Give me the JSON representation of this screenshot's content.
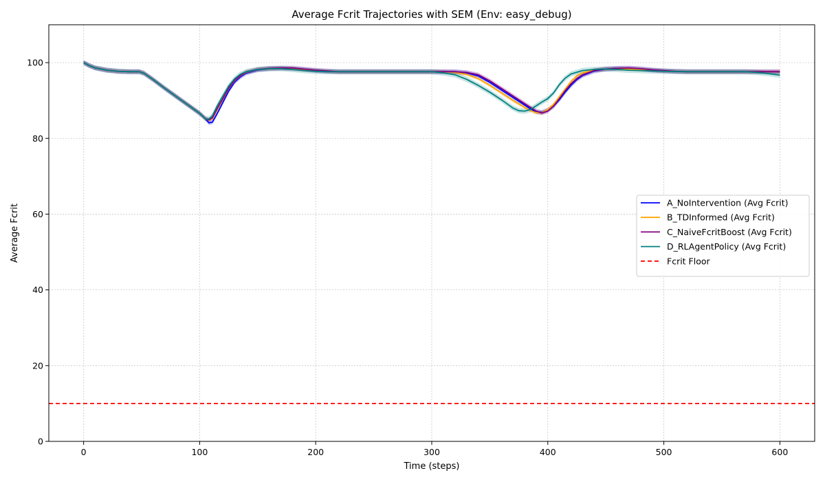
{
  "chart_data": {
    "type": "line",
    "title": "Average Fcrit Trajectories with SEM (Env: easy_debug)",
    "xlabel": "Time (steps)",
    "ylabel": "Average Fcrit",
    "xlim": [
      -30,
      630
    ],
    "ylim": [
      0,
      110
    ],
    "xticks": [
      0,
      100,
      200,
      300,
      400,
      500,
      600
    ],
    "yticks": [
      0,
      20,
      40,
      60,
      80,
      100
    ],
    "grid": true,
    "legend_position": "center-right",
    "series": [
      {
        "name": "A_NoIntervention (Avg Fcrit)",
        "color": "#0000ff",
        "style": "solid",
        "sem": 0.6,
        "points": [
          [
            0,
            100
          ],
          [
            5,
            99.2
          ],
          [
            10,
            98.6
          ],
          [
            20,
            98
          ],
          [
            30,
            97.7
          ],
          [
            40,
            97.6
          ],
          [
            48,
            97.6
          ],
          [
            52,
            97.2
          ],
          [
            60,
            95.5
          ],
          [
            70,
            93.2
          ],
          [
            80,
            91
          ],
          [
            90,
            88.8
          ],
          [
            100,
            86.6
          ],
          [
            105,
            85.2
          ],
          [
            108,
            84.1
          ],
          [
            111,
            84.3
          ],
          [
            115,
            86.5
          ],
          [
            120,
            89.5
          ],
          [
            125,
            92.5
          ],
          [
            130,
            94.8
          ],
          [
            135,
            96.2
          ],
          [
            140,
            97.2
          ],
          [
            150,
            98.1
          ],
          [
            160,
            98.4
          ],
          [
            170,
            98.5
          ],
          [
            180,
            98.4
          ],
          [
            190,
            98.2
          ],
          [
            200,
            97.9
          ],
          [
            210,
            97.7
          ],
          [
            220,
            97.6
          ],
          [
            300,
            97.6
          ],
          [
            310,
            97.6
          ],
          [
            320,
            97.6
          ],
          [
            330,
            97.3
          ],
          [
            340,
            96.5
          ],
          [
            350,
            94.8
          ],
          [
            360,
            92.8
          ],
          [
            370,
            90.8
          ],
          [
            380,
            88.8
          ],
          [
            385,
            87.8
          ],
          [
            390,
            87
          ],
          [
            395,
            86.9
          ],
          [
            400,
            87.5
          ],
          [
            405,
            88.5
          ],
          [
            410,
            90.2
          ],
          [
            415,
            92.2
          ],
          [
            420,
            94
          ],
          [
            425,
            95.5
          ],
          [
            430,
            96.6
          ],
          [
            440,
            97.8
          ],
          [
            450,
            98.3
          ],
          [
            460,
            98.5
          ],
          [
            470,
            98.5
          ],
          [
            480,
            98.3
          ],
          [
            490,
            98
          ],
          [
            500,
            97.8
          ],
          [
            510,
            97.7
          ],
          [
            520,
            97.6
          ],
          [
            600,
            97.6
          ]
        ]
      },
      {
        "name": "B_TDInformed (Avg Fcrit)",
        "color": "#ffa500",
        "style": "solid",
        "sem": 0.5,
        "points": [
          [
            0,
            100
          ],
          [
            5,
            99.2
          ],
          [
            10,
            98.6
          ],
          [
            20,
            98
          ],
          [
            30,
            97.7
          ],
          [
            40,
            97.6
          ],
          [
            48,
            97.6
          ],
          [
            52,
            97.2
          ],
          [
            60,
            95.5
          ],
          [
            70,
            93.2
          ],
          [
            80,
            91
          ],
          [
            90,
            88.8
          ],
          [
            100,
            86.6
          ],
          [
            105,
            85.2
          ],
          [
            108,
            84.8
          ],
          [
            111,
            85.2
          ],
          [
            115,
            87.5
          ],
          [
            120,
            90.3
          ],
          [
            125,
            93.2
          ],
          [
            130,
            95.2
          ],
          [
            135,
            96.5
          ],
          [
            140,
            97.4
          ],
          [
            150,
            98.2
          ],
          [
            160,
            98.4
          ],
          [
            170,
            98.5
          ],
          [
            180,
            98.4
          ],
          [
            190,
            98.1
          ],
          [
            200,
            97.9
          ],
          [
            210,
            97.7
          ],
          [
            220,
            97.6
          ],
          [
            300,
            97.6
          ],
          [
            310,
            97.6
          ],
          [
            320,
            97.4
          ],
          [
            330,
            96.9
          ],
          [
            340,
            95.8
          ],
          [
            350,
            94
          ],
          [
            360,
            92
          ],
          [
            370,
            90
          ],
          [
            380,
            88.2
          ],
          [
            385,
            87.3
          ],
          [
            390,
            86.8
          ],
          [
            395,
            86.8
          ],
          [
            400,
            87.6
          ],
          [
            405,
            89
          ],
          [
            410,
            91
          ],
          [
            415,
            93
          ],
          [
            420,
            95
          ],
          [
            425,
            96.5
          ],
          [
            430,
            97.3
          ],
          [
            440,
            98
          ],
          [
            450,
            98.3
          ],
          [
            460,
            98.4
          ],
          [
            470,
            98.3
          ],
          [
            480,
            98.2
          ],
          [
            490,
            98
          ],
          [
            500,
            97.8
          ],
          [
            510,
            97.7
          ],
          [
            520,
            97.6
          ],
          [
            600,
            97.6
          ]
        ]
      },
      {
        "name": "C_NaiveFcritBoost (Avg Fcrit)",
        "color": "#800080",
        "style": "solid",
        "sem": 0.6,
        "points": [
          [
            0,
            100
          ],
          [
            5,
            99.2
          ],
          [
            10,
            98.6
          ],
          [
            20,
            98
          ],
          [
            30,
            97.7
          ],
          [
            40,
            97.6
          ],
          [
            48,
            97.6
          ],
          [
            52,
            97.2
          ],
          [
            60,
            95.5
          ],
          [
            70,
            93.2
          ],
          [
            80,
            91
          ],
          [
            90,
            88.8
          ],
          [
            100,
            86.6
          ],
          [
            105,
            85.2
          ],
          [
            108,
            84.9
          ],
          [
            111,
            85.4
          ],
          [
            115,
            87.8
          ],
          [
            120,
            90.5
          ],
          [
            125,
            93.3
          ],
          [
            130,
            95.3
          ],
          [
            135,
            96.6
          ],
          [
            140,
            97.5
          ],
          [
            150,
            98.2
          ],
          [
            160,
            98.5
          ],
          [
            170,
            98.6
          ],
          [
            180,
            98.6
          ],
          [
            190,
            98.3
          ],
          [
            200,
            98
          ],
          [
            210,
            97.8
          ],
          [
            220,
            97.6
          ],
          [
            300,
            97.6
          ],
          [
            310,
            97.6
          ],
          [
            320,
            97.6
          ],
          [
            330,
            97.4
          ],
          [
            340,
            96.8
          ],
          [
            350,
            95.2
          ],
          [
            360,
            93.2
          ],
          [
            370,
            91.2
          ],
          [
            380,
            89.2
          ],
          [
            385,
            88.2
          ],
          [
            390,
            87.2
          ],
          [
            395,
            86.7
          ],
          [
            400,
            87.2
          ],
          [
            405,
            88.5
          ],
          [
            410,
            90.5
          ],
          [
            415,
            92.6
          ],
          [
            420,
            94.4
          ],
          [
            425,
            95.8
          ],
          [
            430,
            96.8
          ],
          [
            440,
            97.9
          ],
          [
            450,
            98.3
          ],
          [
            460,
            98.5
          ],
          [
            470,
            98.6
          ],
          [
            480,
            98.4
          ],
          [
            490,
            98.1
          ],
          [
            500,
            97.9
          ],
          [
            510,
            97.7
          ],
          [
            520,
            97.6
          ],
          [
            600,
            97.6
          ]
        ]
      },
      {
        "name": "D_RLAgentPolicy (Avg Fcrit)",
        "color": "#008080",
        "style": "solid",
        "sem": 0.7,
        "points": [
          [
            0,
            100
          ],
          [
            5,
            99.2
          ],
          [
            10,
            98.6
          ],
          [
            20,
            98
          ],
          [
            30,
            97.7
          ],
          [
            40,
            97.6
          ],
          [
            48,
            97.6
          ],
          [
            52,
            97.2
          ],
          [
            60,
            95.5
          ],
          [
            70,
            93.2
          ],
          [
            80,
            91
          ],
          [
            90,
            88.8
          ],
          [
            100,
            86.6
          ],
          [
            105,
            85.2
          ],
          [
            108,
            85.1
          ],
          [
            111,
            86
          ],
          [
            115,
            88.5
          ],
          [
            120,
            91.2
          ],
          [
            125,
            93.8
          ],
          [
            130,
            95.7
          ],
          [
            135,
            96.9
          ],
          [
            140,
            97.6
          ],
          [
            150,
            98.2
          ],
          [
            160,
            98.4
          ],
          [
            170,
            98.4
          ],
          [
            180,
            98.2
          ],
          [
            190,
            97.9
          ],
          [
            200,
            97.7
          ],
          [
            210,
            97.6
          ],
          [
            300,
            97.6
          ],
          [
            310,
            97.3
          ],
          [
            320,
            96.8
          ],
          [
            330,
            95.6
          ],
          [
            340,
            94
          ],
          [
            350,
            92.2
          ],
          [
            360,
            90.2
          ],
          [
            370,
            88
          ],
          [
            375,
            87.3
          ],
          [
            380,
            87.2
          ],
          [
            385,
            87.6
          ],
          [
            390,
            88.6
          ],
          [
            395,
            89.6
          ],
          [
            400,
            90.5
          ],
          [
            405,
            92
          ],
          [
            410,
            94.2
          ],
          [
            415,
            95.9
          ],
          [
            420,
            97
          ],
          [
            430,
            97.9
          ],
          [
            440,
            98.2
          ],
          [
            450,
            98.3
          ],
          [
            460,
            98.2
          ],
          [
            470,
            98
          ],
          [
            480,
            97.9
          ],
          [
            490,
            97.8
          ],
          [
            500,
            97.7
          ],
          [
            520,
            97.6
          ],
          [
            570,
            97.6
          ],
          [
            580,
            97.4
          ],
          [
            590,
            97.1
          ],
          [
            600,
            96.7
          ]
        ]
      },
      {
        "name": "Fcrit Floor",
        "color": "#ff0000",
        "style": "dashed",
        "points": [
          [
            -30,
            10
          ],
          [
            630,
            10
          ]
        ]
      }
    ]
  }
}
